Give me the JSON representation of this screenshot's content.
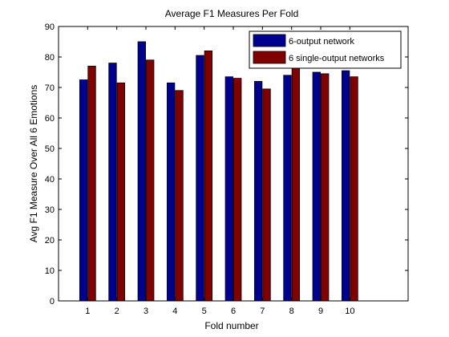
{
  "chart_data": {
    "type": "bar",
    "title": "Average F1 Measures Per Fold",
    "xlabel": "Fold number",
    "ylabel": "Avg F1 Measure Over All 6 Emotions",
    "categories": [
      "1",
      "2",
      "3",
      "4",
      "5",
      "6",
      "7",
      "8",
      "9",
      "10"
    ],
    "xlim": [
      0,
      12
    ],
    "ylim": [
      0,
      90
    ],
    "yticks": [
      0,
      10,
      20,
      30,
      40,
      50,
      60,
      70,
      80,
      90
    ],
    "grid": false,
    "legend_position": "top-right",
    "series": [
      {
        "name": "6-output network",
        "color": "#00008f",
        "values": [
          72.5,
          78,
          85,
          71.5,
          80.5,
          73.5,
          72,
          74,
          75,
          75.5
        ]
      },
      {
        "name": "6 single-output networks",
        "color": "#800000",
        "values": [
          77,
          71.5,
          79,
          69,
          82,
          73,
          69.5,
          77,
          74.5,
          73.5
        ]
      }
    ]
  }
}
